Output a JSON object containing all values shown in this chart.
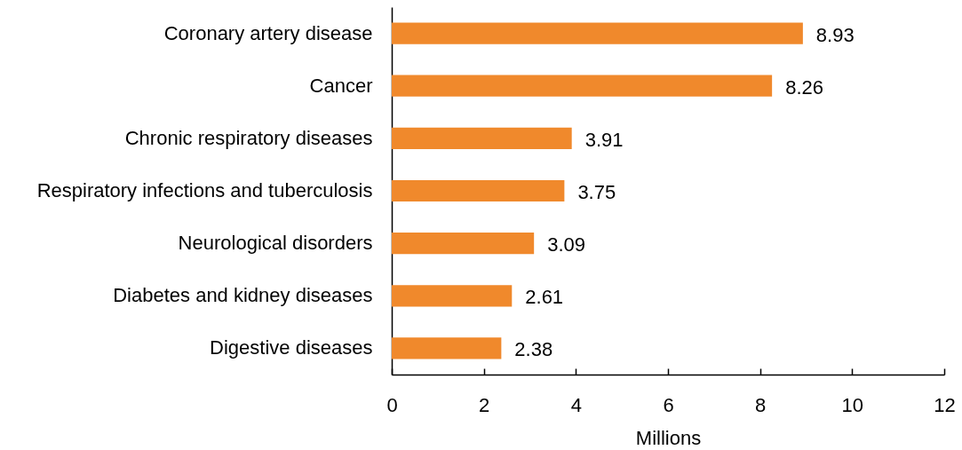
{
  "chart_data": {
    "type": "bar",
    "orientation": "horizontal",
    "categories": [
      "Coronary artery disease",
      "Cancer",
      "Chronic respiratory diseases",
      "Respiratory infections and tuberculosis",
      "Neurological disorders",
      "Diabetes and kidney diseases",
      "Digestive diseases"
    ],
    "values": [
      8.93,
      8.26,
      3.91,
      3.75,
      3.09,
      2.61,
      2.38
    ],
    "color": "#f0892c",
    "xlabel": "Millions",
    "xlim": [
      0,
      12
    ],
    "xticks": [
      0,
      2,
      4,
      6,
      8,
      10,
      12
    ],
    "data_labels": true
  }
}
